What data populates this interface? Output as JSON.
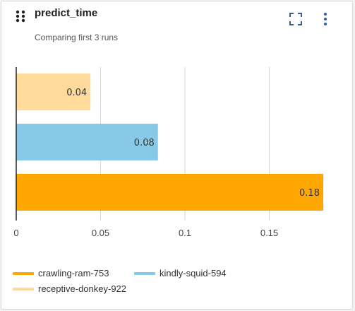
{
  "panel": {
    "title": "predict_time",
    "subtitle": "Comparing first 3 runs"
  },
  "icons": {
    "drag": "drag-handle-icon",
    "expand": "expand-icon",
    "menu": "more-vertical-icon"
  },
  "colors": {
    "crawling-ram-753": "#ffa600",
    "kindly-squid-594": "#87c9e6",
    "receptive-donkey-922": "#ffda9a",
    "grid": "#d6d6d6",
    "axis": "#222222"
  },
  "chart_data": {
    "type": "bar",
    "orientation": "horizontal",
    "categories": [
      "receptive-donkey-922",
      "kindly-squid-594",
      "crawling-ram-753"
    ],
    "values": [
      0.044,
      0.084,
      0.182
    ],
    "data_labels": [
      "0.04",
      "0.08",
      "0.18"
    ],
    "xlim": [
      0,
      0.2
    ],
    "xticks": [
      0,
      0.05,
      0.1,
      0.15
    ],
    "xtick_labels": [
      "0",
      "0.05",
      "0.1",
      "0.15"
    ],
    "grid": true,
    "legend_position": "bottom-left"
  },
  "legend": [
    {
      "label": "crawling-ram-753",
      "color": "#ffa600"
    },
    {
      "label": "kindly-squid-594",
      "color": "#87c9e6"
    },
    {
      "label": "receptive-donkey-922",
      "color": "#ffda9a"
    }
  ]
}
